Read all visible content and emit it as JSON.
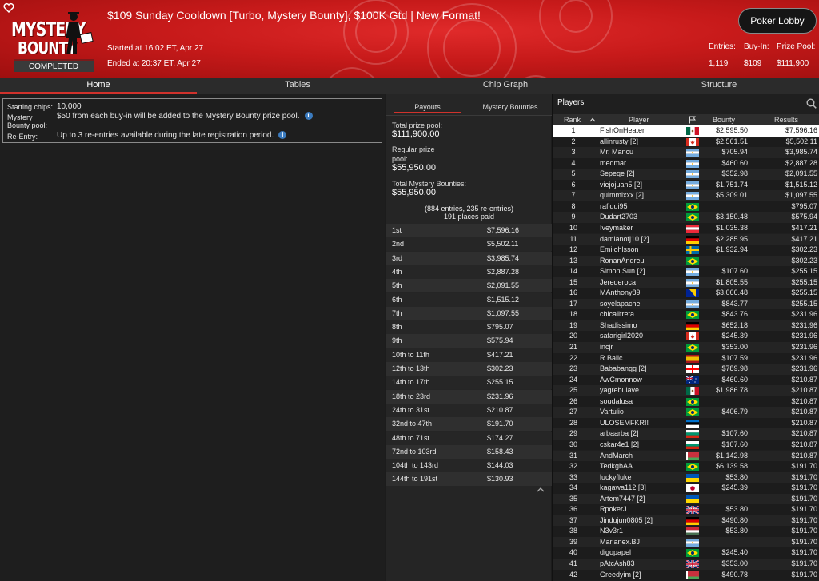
{
  "header": {
    "title": "$109 Sunday Cooldown [Turbo, Mystery Bounty], $100K Gtd | New Format!",
    "logo_line1": "MYSTERY",
    "logo_line2": "BOUNTY",
    "status_badge": "COMPLETED",
    "started": "Started at 16:02 ET, Apr 27",
    "ended": "Ended at 20:37 ET, Apr 27",
    "lobby_button": "Poker Lobby",
    "stats": [
      {
        "label": "Entries:",
        "value": "1,119"
      },
      {
        "label": "Buy-In:",
        "value": "$109"
      },
      {
        "label": "Prize Pool:",
        "value": "$111,900"
      }
    ],
    "brand_color": "#c71a1a"
  },
  "tabs": [
    "Home",
    "Tables",
    "Chip Graph",
    "Structure"
  ],
  "info": {
    "starting_chips_label": "Starting chips:",
    "starting_chips_value": "10,000",
    "mystery_label_1": "Mystery",
    "mystery_label_2": "Bounty pool:",
    "mystery_value": "$50 from each buy-in will be added to the Mystery Bounty prize pool.",
    "reentry_label": "Re-Entry:",
    "reentry_value": "Up to 3 re-entries available during the late registration period."
  },
  "payouts": {
    "tabs": [
      "Payouts",
      "Mystery Bounties"
    ],
    "total_prize_label": "Total prize pool:",
    "total_prize_value": "$111,900.00",
    "regular_label_1": "Regular prize",
    "regular_label_2": "pool:",
    "regular_value": "$55,950.00",
    "mystery_label": "Total Mystery Bounties:",
    "mystery_value": "$55,950.00",
    "entries_note": "(884 entries, 235 re-entries)",
    "places_note": "191 places paid",
    "rows": [
      {
        "place": "1st",
        "amount": "$7,596.16"
      },
      {
        "place": "2nd",
        "amount": "$5,502.11"
      },
      {
        "place": "3rd",
        "amount": "$3,985.74"
      },
      {
        "place": "4th",
        "amount": "$2,887.28"
      },
      {
        "place": "5th",
        "amount": "$2,091.55"
      },
      {
        "place": "6th",
        "amount": "$1,515.12"
      },
      {
        "place": "7th",
        "amount": "$1,097.55"
      },
      {
        "place": "8th",
        "amount": "$795.07"
      },
      {
        "place": "9th",
        "amount": "$575.94"
      },
      {
        "place": "10th to 11th",
        "amount": "$417.21"
      },
      {
        "place": "12th to 13th",
        "amount": "$302.23"
      },
      {
        "place": "14th to 17th",
        "amount": "$255.15"
      },
      {
        "place": "18th to 23rd",
        "amount": "$231.96"
      },
      {
        "place": "24th to 31st",
        "amount": "$210.87"
      },
      {
        "place": "32nd to 47th",
        "amount": "$191.70"
      },
      {
        "place": "48th to 71st",
        "amount": "$174.27"
      },
      {
        "place": "72nd to 103rd",
        "amount": "$158.43"
      },
      {
        "place": "104th to 143rd",
        "amount": "$144.03"
      },
      {
        "place": "144th to 191st",
        "amount": "$130.93"
      }
    ]
  },
  "players": {
    "title": "Players",
    "columns": {
      "rank": "Rank",
      "player": "Player",
      "bounty": "Bounty",
      "results": "Results"
    },
    "rows": [
      {
        "rank": "1",
        "name": "FishOnHeater",
        "flag": "mexico",
        "bounty": "$2,595.50",
        "result": "$7,596.16"
      },
      {
        "rank": "2",
        "name": "allinrusty [2]",
        "flag": "canada",
        "bounty": "$2,561.51",
        "result": "$5,502.11"
      },
      {
        "rank": "3",
        "name": "Mr. Mancu",
        "flag": "argentina",
        "bounty": "$705.94",
        "result": "$3,985.74"
      },
      {
        "rank": "4",
        "name": "medmar",
        "flag": "argentina",
        "bounty": "$460.60",
        "result": "$2,887.28"
      },
      {
        "rank": "5",
        "name": "Sepeqe [2]",
        "flag": "argentina",
        "bounty": "$352.98",
        "result": "$2,091.55"
      },
      {
        "rank": "6",
        "name": "viejojuan5 [2]",
        "flag": "argentina",
        "bounty": "$1,751.74",
        "result": "$1,515.12"
      },
      {
        "rank": "7",
        "name": "quimmixxx [2]",
        "flag": "argentina",
        "bounty": "$5,309.01",
        "result": "$1,097.55"
      },
      {
        "rank": "8",
        "name": "rafiqui95",
        "flag": "brazil",
        "bounty": "",
        "result": "$795.07"
      },
      {
        "rank": "9",
        "name": "Dudart2703",
        "flag": "brazil",
        "bounty": "$3,150.48",
        "result": "$575.94"
      },
      {
        "rank": "10",
        "name": "Iveymaker",
        "flag": "austria",
        "bounty": "$1,035.38",
        "result": "$417.21"
      },
      {
        "rank": "11",
        "name": "damianofj10 [2]",
        "flag": "germany",
        "bounty": "$2,285.95",
        "result": "$417.21"
      },
      {
        "rank": "12",
        "name": "Emilohlsson",
        "flag": "sweden",
        "bounty": "$1,932.94",
        "result": "$302.23"
      },
      {
        "rank": "13",
        "name": "RonanAndreu",
        "flag": "brazil",
        "bounty": "",
        "result": "$302.23"
      },
      {
        "rank": "14",
        "name": "Simon Sun [2]",
        "flag": "argentina",
        "bounty": "$107.60",
        "result": "$255.15"
      },
      {
        "rank": "15",
        "name": "Jerederoca",
        "flag": "argentina",
        "bounty": "$1,805.55",
        "result": "$255.15"
      },
      {
        "rank": "16",
        "name": "MAnthony89",
        "flag": "bosnia",
        "bounty": "$3,066.48",
        "result": "$255.15"
      },
      {
        "rank": "17",
        "name": "soyelapache",
        "flag": "argentina",
        "bounty": "$843.77",
        "result": "$255.15"
      },
      {
        "rank": "18",
        "name": "chicalltreta",
        "flag": "brazil",
        "bounty": "$843.76",
        "result": "$231.96"
      },
      {
        "rank": "19",
        "name": "Shadissimo",
        "flag": "germany",
        "bounty": "$652.18",
        "result": "$231.96"
      },
      {
        "rank": "20",
        "name": "safarigirl2020",
        "flag": "canada",
        "bounty": "$245.39",
        "result": "$231.96"
      },
      {
        "rank": "21",
        "name": "incjr",
        "flag": "brazil",
        "bounty": "$353.00",
        "result": "$231.96"
      },
      {
        "rank": "22",
        "name": "R.Balic",
        "flag": "spain",
        "bounty": "$107.59",
        "result": "$231.96"
      },
      {
        "rank": "23",
        "name": "Bababangg [2]",
        "flag": "georgia",
        "bounty": "$789.98",
        "result": "$231.96"
      },
      {
        "rank": "24",
        "name": "AwCmonnow",
        "flag": "australia",
        "bounty": "$460.60",
        "result": "$210.87"
      },
      {
        "rank": "25",
        "name": "yagrebulave",
        "flag": "mexico",
        "bounty": "$1,986.78",
        "result": "$210.87"
      },
      {
        "rank": "26",
        "name": "soudalusa",
        "flag": "brazil",
        "bounty": "",
        "result": "$210.87"
      },
      {
        "rank": "27",
        "name": "Vartulio",
        "flag": "brazil",
        "bounty": "$406.79",
        "result": "$210.87"
      },
      {
        "rank": "28",
        "name": "ULOSEMFKR!!",
        "flag": "estonia",
        "bounty": "",
        "result": "$210.87"
      },
      {
        "rank": "29",
        "name": "arbaarba [2]",
        "flag": "bulgaria",
        "bounty": "$107.60",
        "result": "$210.87"
      },
      {
        "rank": "30",
        "name": "cskar4e1 [2]",
        "flag": "bulgaria",
        "bounty": "$107.60",
        "result": "$210.87"
      },
      {
        "rank": "31",
        "name": "AndMarch",
        "flag": "belarus",
        "bounty": "$1,142.98",
        "result": "$210.87"
      },
      {
        "rank": "32",
        "name": "TedkgbAA",
        "flag": "brazil",
        "bounty": "$6,139.58",
        "result": "$191.70"
      },
      {
        "rank": "33",
        "name": "luckyfluke",
        "flag": "ukraine",
        "bounty": "$53.80",
        "result": "$191.70"
      },
      {
        "rank": "34",
        "name": "kagawa112 [3]",
        "flag": "japan",
        "bounty": "$245.39",
        "result": "$191.70"
      },
      {
        "rank": "35",
        "name": "Artem7447 [2]",
        "flag": "ukraine",
        "bounty": "",
        "result": "$191.70"
      },
      {
        "rank": "36",
        "name": "RpokerJ",
        "flag": "uk",
        "bounty": "$53.80",
        "result": "$191.70"
      },
      {
        "rank": "37",
        "name": "Jindujun0805 [2]",
        "flag": "germany",
        "bounty": "$490.80",
        "result": "$191.70"
      },
      {
        "rank": "38",
        "name": "N3v3r1",
        "flag": "hungary",
        "bounty": "$53.80",
        "result": "$191.70"
      },
      {
        "rank": "39",
        "name": "Marianex.BJ",
        "flag": "argentina",
        "bounty": "",
        "result": "$191.70"
      },
      {
        "rank": "40",
        "name": "digopapel",
        "flag": "brazil",
        "bounty": "$245.40",
        "result": "$191.70"
      },
      {
        "rank": "41",
        "name": "pAtcAsh83",
        "flag": "uk",
        "bounty": "$353.00",
        "result": "$191.70"
      },
      {
        "rank": "42",
        "name": "Greedyim [2]",
        "flag": "belarus",
        "bounty": "$490.78",
        "result": "$191.70"
      }
    ]
  }
}
